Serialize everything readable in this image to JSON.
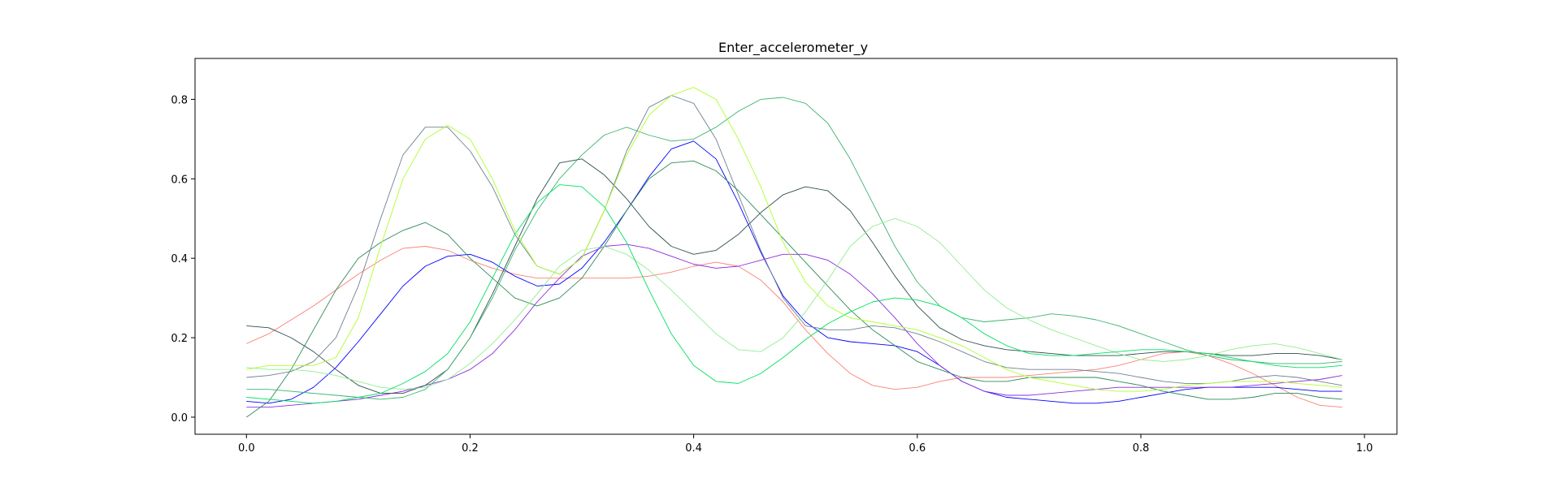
{
  "chart_data": {
    "type": "line",
    "title": "Enter_accelerometer_y",
    "xlabel": "",
    "ylabel": "",
    "xlim": [
      -0.046,
      1.029
    ],
    "ylim": [
      -0.043,
      0.903
    ],
    "xticks": [
      0.0,
      0.2,
      0.4,
      0.6,
      0.8,
      1.0
    ],
    "xtick_labels": [
      "0.0",
      "0.2",
      "0.4",
      "0.6",
      "0.8",
      "1.0"
    ],
    "yticks": [
      0.0,
      0.2,
      0.4,
      0.6,
      0.8
    ],
    "ytick_labels": [
      "0.0",
      "0.2",
      "0.4",
      "0.6",
      "0.8"
    ],
    "grid": false,
    "x": [
      0.0,
      0.02,
      0.04,
      0.06,
      0.08,
      0.1,
      0.12,
      0.14,
      0.16,
      0.18,
      0.2,
      0.22,
      0.24,
      0.26,
      0.28,
      0.3,
      0.32,
      0.34,
      0.36,
      0.38,
      0.4,
      0.42,
      0.44,
      0.46,
      0.48,
      0.5,
      0.52,
      0.54,
      0.56,
      0.58,
      0.6,
      0.62,
      0.64,
      0.66,
      0.68,
      0.7,
      0.72,
      0.74,
      0.76,
      0.78,
      0.8,
      0.82,
      0.84,
      0.86,
      0.88,
      0.9,
      0.92,
      0.94,
      0.96,
      0.98
    ],
    "series": [
      {
        "color": "#fa8072",
        "values": [
          0.185,
          0.21,
          0.245,
          0.28,
          0.32,
          0.36,
          0.395,
          0.425,
          0.43,
          0.42,
          0.395,
          0.375,
          0.36,
          0.35,
          0.35,
          0.35,
          0.35,
          0.35,
          0.355,
          0.365,
          0.38,
          0.39,
          0.38,
          0.345,
          0.29,
          0.22,
          0.16,
          0.11,
          0.08,
          0.07,
          0.075,
          0.09,
          0.1,
          0.1,
          0.1,
          0.105,
          0.11,
          0.115,
          0.12,
          0.13,
          0.145,
          0.16,
          0.165,
          0.155,
          0.135,
          0.11,
          0.08,
          0.05,
          0.03,
          0.025
        ]
      },
      {
        "color": "#0000ff",
        "values": [
          0.04,
          0.035,
          0.045,
          0.075,
          0.125,
          0.19,
          0.26,
          0.33,
          0.38,
          0.405,
          0.41,
          0.39,
          0.355,
          0.33,
          0.335,
          0.375,
          0.44,
          0.52,
          0.605,
          0.675,
          0.695,
          0.65,
          0.54,
          0.415,
          0.305,
          0.24,
          0.2,
          0.19,
          0.185,
          0.18,
          0.165,
          0.13,
          0.09,
          0.065,
          0.05,
          0.045,
          0.04,
          0.035,
          0.035,
          0.04,
          0.05,
          0.06,
          0.07,
          0.075,
          0.075,
          0.075,
          0.075,
          0.07,
          0.065,
          0.065
        ]
      },
      {
        "color": "#8a2be2",
        "values": [
          0.025,
          0.025,
          0.03,
          0.035,
          0.04,
          0.045,
          0.055,
          0.065,
          0.08,
          0.095,
          0.12,
          0.16,
          0.22,
          0.29,
          0.35,
          0.405,
          0.43,
          0.435,
          0.425,
          0.405,
          0.385,
          0.375,
          0.38,
          0.395,
          0.41,
          0.41,
          0.395,
          0.36,
          0.31,
          0.25,
          0.185,
          0.13,
          0.09,
          0.065,
          0.055,
          0.055,
          0.06,
          0.065,
          0.07,
          0.075,
          0.075,
          0.075,
          0.075,
          0.075,
          0.075,
          0.08,
          0.085,
          0.09,
          0.095,
          0.105
        ]
      },
      {
        "color": "#2f4f4f",
        "values": [
          0.23,
          0.225,
          0.2,
          0.165,
          0.12,
          0.08,
          0.06,
          0.06,
          0.08,
          0.12,
          0.2,
          0.31,
          0.43,
          0.55,
          0.64,
          0.65,
          0.61,
          0.55,
          0.48,
          0.43,
          0.41,
          0.42,
          0.46,
          0.515,
          0.56,
          0.58,
          0.57,
          0.52,
          0.44,
          0.355,
          0.28,
          0.225,
          0.195,
          0.18,
          0.17,
          0.165,
          0.16,
          0.155,
          0.155,
          0.155,
          0.16,
          0.165,
          0.165,
          0.16,
          0.155,
          0.155,
          0.16,
          0.16,
          0.155,
          0.145
        ]
      },
      {
        "color": "#708090",
        "values": [
          0.1,
          0.105,
          0.115,
          0.14,
          0.2,
          0.33,
          0.5,
          0.66,
          0.73,
          0.73,
          0.67,
          0.58,
          0.46,
          0.38,
          0.36,
          0.4,
          0.52,
          0.67,
          0.78,
          0.81,
          0.79,
          0.7,
          0.56,
          0.42,
          0.3,
          0.23,
          0.22,
          0.22,
          0.23,
          0.225,
          0.21,
          0.19,
          0.165,
          0.14,
          0.125,
          0.12,
          0.12,
          0.12,
          0.115,
          0.11,
          0.1,
          0.09,
          0.085,
          0.085,
          0.09,
          0.1,
          0.105,
          0.1,
          0.09,
          0.08
        ]
      },
      {
        "color": "#2e8b57",
        "values": [
          0.0,
          0.04,
          0.12,
          0.22,
          0.32,
          0.4,
          0.44,
          0.47,
          0.49,
          0.46,
          0.4,
          0.35,
          0.3,
          0.28,
          0.3,
          0.35,
          0.43,
          0.52,
          0.6,
          0.64,
          0.645,
          0.62,
          0.57,
          0.51,
          0.45,
          0.39,
          0.33,
          0.27,
          0.22,
          0.18,
          0.14,
          0.12,
          0.1,
          0.09,
          0.09,
          0.1,
          0.1,
          0.1,
          0.1,
          0.09,
          0.08,
          0.065,
          0.055,
          0.045,
          0.045,
          0.05,
          0.06,
          0.06,
          0.05,
          0.045
        ]
      },
      {
        "color": "#3cb371",
        "values": [
          0.07,
          0.07,
          0.065,
          0.06,
          0.055,
          0.05,
          0.045,
          0.05,
          0.07,
          0.12,
          0.2,
          0.3,
          0.42,
          0.52,
          0.6,
          0.66,
          0.71,
          0.73,
          0.71,
          0.695,
          0.7,
          0.73,
          0.77,
          0.8,
          0.805,
          0.79,
          0.74,
          0.65,
          0.54,
          0.43,
          0.34,
          0.28,
          0.25,
          0.24,
          0.245,
          0.25,
          0.26,
          0.255,
          0.245,
          0.23,
          0.21,
          0.19,
          0.17,
          0.155,
          0.145,
          0.14,
          0.135,
          0.135,
          0.135,
          0.14
        ]
      },
      {
        "color": "#90ee90",
        "values": [
          0.125,
          0.12,
          0.12,
          0.115,
          0.105,
          0.09,
          0.075,
          0.07,
          0.075,
          0.095,
          0.135,
          0.185,
          0.245,
          0.31,
          0.38,
          0.42,
          0.43,
          0.41,
          0.37,
          0.32,
          0.265,
          0.21,
          0.17,
          0.165,
          0.2,
          0.265,
          0.345,
          0.43,
          0.48,
          0.5,
          0.48,
          0.44,
          0.38,
          0.32,
          0.275,
          0.245,
          0.22,
          0.2,
          0.18,
          0.16,
          0.145,
          0.14,
          0.145,
          0.155,
          0.17,
          0.18,
          0.185,
          0.175,
          0.16,
          0.145
        ]
      },
      {
        "color": "#00e060",
        "values": [
          0.05,
          0.045,
          0.04,
          0.035,
          0.04,
          0.05,
          0.06,
          0.085,
          0.115,
          0.16,
          0.24,
          0.35,
          0.46,
          0.54,
          0.585,
          0.58,
          0.53,
          0.44,
          0.32,
          0.21,
          0.13,
          0.09,
          0.085,
          0.11,
          0.15,
          0.195,
          0.235,
          0.265,
          0.29,
          0.3,
          0.295,
          0.28,
          0.25,
          0.21,
          0.18,
          0.16,
          0.155,
          0.155,
          0.16,
          0.165,
          0.17,
          0.17,
          0.165,
          0.16,
          0.15,
          0.14,
          0.13,
          0.125,
          0.125,
          0.13
        ]
      },
      {
        "color": "#adff2f",
        "values": [
          0.12,
          0.13,
          0.13,
          0.13,
          0.15,
          0.25,
          0.43,
          0.6,
          0.7,
          0.735,
          0.7,
          0.6,
          0.47,
          0.38,
          0.36,
          0.4,
          0.52,
          0.66,
          0.76,
          0.81,
          0.83,
          0.8,
          0.7,
          0.58,
          0.44,
          0.34,
          0.28,
          0.25,
          0.24,
          0.23,
          0.22,
          0.2,
          0.18,
          0.15,
          0.12,
          0.1,
          0.09,
          0.08,
          0.07,
          0.065,
          0.065,
          0.07,
          0.08,
          0.085,
          0.09,
          0.09,
          0.09,
          0.085,
          0.08,
          0.075
        ]
      }
    ]
  }
}
